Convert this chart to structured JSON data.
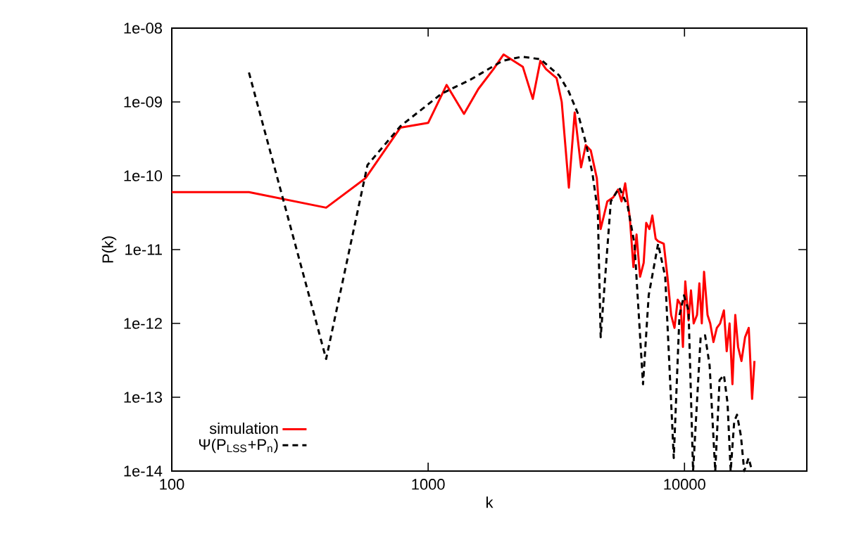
{
  "chart_data": {
    "type": "line",
    "xlabel": "k",
    "ylabel": "P(k)",
    "log": "xy",
    "legend": "bottom left",
    "xlim": [
      100,
      30000
    ],
    "xticks": [
      100,
      1000,
      10000
    ],
    "ylim": [
      1e-14,
      1e-08
    ],
    "yticks": [
      {
        "value": 1e-14,
        "label": "1e-14"
      },
      {
        "value": 1e-13,
        "label": "1e-13"
      },
      {
        "value": 1e-12,
        "label": "1e-12"
      },
      {
        "value": 1e-11,
        "label": "1e-11"
      },
      {
        "value": 1e-10,
        "label": "1e-10"
      },
      {
        "value": 1e-09,
        "label": "1e-09"
      },
      {
        "value": 1e-08,
        "label": "1e-08"
      }
    ],
    "series": [
      {
        "name": "simulation",
        "color": "#ff0000",
        "line_style": "solid",
        "x": [
          100,
          200,
          400,
          570,
          780,
          1000,
          1180,
          1380,
          1570,
          1800,
          1970,
          2340,
          2560,
          2740,
          2880,
          3170,
          3320,
          3540,
          3730,
          3950,
          4120,
          4310,
          4550,
          4710,
          5000,
          5270,
          5500,
          5680,
          5870,
          6120,
          6320,
          6500,
          6710,
          6930,
          7090,
          7300,
          7490,
          7720,
          7890,
          8300,
          8580,
          8870,
          9140,
          9410,
          9660,
          9860,
          10070,
          10370,
          10600,
          10860,
          11190,
          11430,
          11680,
          11920,
          12300,
          12600,
          12970,
          13370,
          13770,
          14250,
          14610,
          14990,
          15380,
          15780,
          16180,
          16680,
          17230,
          17810,
          18350,
          18750
        ],
        "values": [
          6e-11,
          6e-11,
          3.7e-11,
          9.3e-11,
          4.5e-10,
          5.2e-10,
          1.7e-09,
          6.9e-10,
          1.5e-09,
          2.8e-09,
          4.4e-09,
          3e-09,
          1.1e-09,
          3.6e-09,
          2.8e-09,
          2.1e-09,
          1e-09,
          6.9e-11,
          7.2e-10,
          1.3e-10,
          2.6e-10,
          2.2e-10,
          9.3e-11,
          1.9e-11,
          4.5e-11,
          5.1e-11,
          6.5e-11,
          4.5e-11,
          7.9e-11,
          2.7e-11,
          5.8e-12,
          1.6e-11,
          4.3e-12,
          6.6e-12,
          2.3e-11,
          1.9e-11,
          2.9e-11,
          1.4e-11,
          1.3e-11,
          1.2e-11,
          4.3e-12,
          1.3e-12,
          8.7e-13,
          2.1e-12,
          1.8e-12,
          4.8e-13,
          3.7e-12,
          1.1e-12,
          2.8e-12,
          1e-12,
          1.3e-12,
          3.5e-12,
          1e-12,
          5e-12,
          1.3e-12,
          1e-12,
          5.6e-13,
          8.7e-13,
          1e-12,
          1.5e-12,
          4.2e-13,
          1e-12,
          1.5e-13,
          1.3e-12,
          4.8e-13,
          3.1e-13,
          6.5e-13,
          8.7e-13,
          9.5e-14,
          3.1e-13
        ]
      },
      {
        "name": "Ψ(P$_{LSS}$+P$_{n}$)",
        "color": "#000000",
        "line_style": "dashed",
        "x": [
          200,
          400,
          580,
          780,
          1130,
          1460,
          1950,
          2320,
          2740,
          3240,
          3530,
          3850,
          4100,
          4370,
          4590,
          4710,
          5160,
          5570,
          6000,
          6380,
          6890,
          7250,
          7890,
          8410,
          9080,
          9560,
          9950,
          10370,
          10800,
          11560,
          12030,
          12530,
          13180,
          13700,
          14250,
          14720,
          15140,
          15630,
          16030,
          16600,
          17100,
          17780,
          18350
        ],
        "values": [
          2.5e-09,
          3.3e-13,
          1.4e-10,
          4.7e-10,
          1.3e-09,
          2e-09,
          3.6e-09,
          4.1e-09,
          3.8e-09,
          2.3e-09,
          1.4e-09,
          6.8e-10,
          3e-10,
          1.1e-10,
          3.3e-11,
          6.5e-13,
          4.5e-11,
          6.9e-11,
          3.9e-11,
          1.2e-11,
          1.5e-13,
          2.4e-12,
          1.2e-11,
          4.3e-12,
          1.5e-14,
          1.3e-12,
          2.4e-12,
          1.5e-12,
          1e-14,
          6.5e-13,
          6.9e-13,
          2.7e-13,
          1e-14,
          1.7e-13,
          2e-13,
          8.3e-14,
          1e-14,
          4.7e-14,
          5.8e-14,
          3e-14,
          1e-14,
          1.5e-14,
          1e-14
        ]
      }
    ]
  }
}
